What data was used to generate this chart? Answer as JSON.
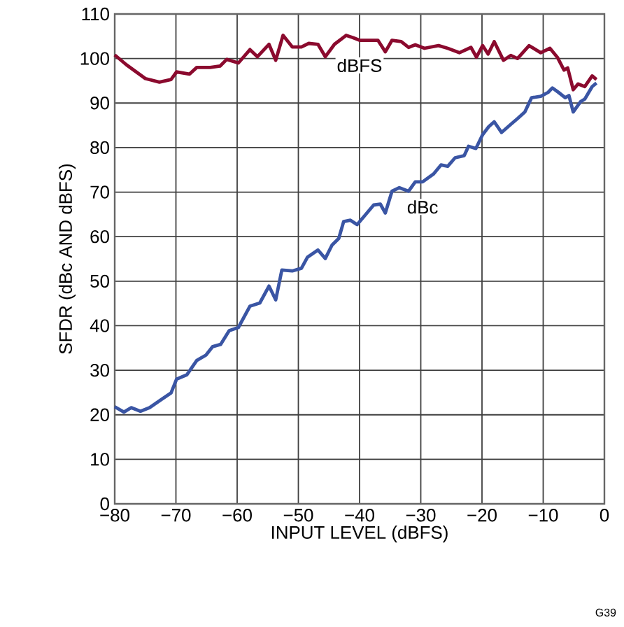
{
  "chart_data": {
    "type": "line",
    "xlabel": "INPUT LEVEL (dBFS)",
    "ylabel": "SFDR (dBc AND dBFS)",
    "xlim": [
      -80,
      0
    ],
    "ylim": [
      0,
      110
    ],
    "xticks": [
      {
        "value": -80,
        "label": "−80"
      },
      {
        "value": -70,
        "label": "−70"
      },
      {
        "value": -60,
        "label": "−60"
      },
      {
        "value": -50,
        "label": "−50"
      },
      {
        "value": -40,
        "label": "−40"
      },
      {
        "value": -30,
        "label": "−30"
      },
      {
        "value": -20,
        "label": "−20"
      },
      {
        "value": -10,
        "label": "−10"
      },
      0
    ],
    "yticks": [
      0,
      10,
      20,
      30,
      40,
      50,
      60,
      70,
      80,
      90,
      100,
      110
    ],
    "grid": true,
    "annotations": [
      "G39"
    ],
    "series": [
      {
        "name": "dBFS",
        "color": "#8b0a2e",
        "x": [
          -80,
          -78.1,
          -75,
          -72.7,
          -70.8,
          -69.9,
          -67.8,
          -66.6,
          -64.4,
          -62.8,
          -61.7,
          -59.8,
          -57.9,
          -56.7,
          -54.8,
          -53.7,
          -52.5,
          -51,
          -49.5,
          -48.3,
          -46.8,
          -45.6,
          -44.1,
          -42.2,
          -41.1,
          -40,
          -37,
          -35.8,
          -34.7,
          -33.2,
          -32,
          -30.9,
          -29.4,
          -27.1,
          -25.6,
          -23.7,
          -21.8,
          -20.9,
          -19.9,
          -19,
          -18,
          -16.5,
          -15.3,
          -14.2,
          -12.3,
          -10.4,
          -8.9,
          -7.7,
          -6.6,
          -6,
          -5.1,
          -4.3,
          -3.2,
          -2,
          -1.3
        ],
        "values": [
          100.8,
          98.6,
          95.5,
          94.7,
          95.3,
          97,
          96.5,
          98,
          98,
          98.3,
          99.8,
          99,
          102,
          100.4,
          103.2,
          99.6,
          105.2,
          102.6,
          102.6,
          103.4,
          103.2,
          100.4,
          103.2,
          105.2,
          104.7,
          104.1,
          104.1,
          101.5,
          104.1,
          103.8,
          102.5,
          103.1,
          102.3,
          102.9,
          102.3,
          101.3,
          102.5,
          100.3,
          102.9,
          101,
          103.8,
          99.6,
          100.7,
          100,
          102.9,
          101.3,
          102.3,
          100.3,
          97.4,
          97.9,
          93,
          94.3,
          93.7,
          96.1,
          95.3
        ]
      },
      {
        "name": "dBc",
        "color": "#3a55a4",
        "x": [
          -80,
          -78.5,
          -77.3,
          -75.8,
          -74.3,
          -72.4,
          -70.8,
          -69.9,
          -68.2,
          -66.6,
          -65.1,
          -64,
          -62.7,
          -61.3,
          -59.8,
          -57.9,
          -56.3,
          -54.8,
          -53.7,
          -52.7,
          -51,
          -49.5,
          -48.5,
          -46.8,
          -45.6,
          -44.5,
          -43.4,
          -42.6,
          -41.5,
          -40.4,
          -37.7,
          -36.6,
          -35.8,
          -34.7,
          -33.5,
          -32,
          -30.9,
          -29.7,
          -27.9,
          -26.7,
          -25.6,
          -24.4,
          -22.9,
          -22.2,
          -21,
          -19.9,
          -18.9,
          -18,
          -16.8,
          -15.3,
          -14.2,
          -13,
          -11.9,
          -10.4,
          -9.2,
          -8.5,
          -7.5,
          -6.4,
          -5.8,
          -5.1,
          -3.9,
          -3.2,
          -2,
          -1.3
        ],
        "values": [
          21.8,
          20.6,
          21.6,
          20.8,
          21.6,
          23.4,
          24.9,
          28,
          29,
          32.2,
          33.4,
          35.3,
          35.8,
          38.9,
          39.6,
          44.4,
          45.1,
          48.9,
          45.8,
          52.5,
          52.3,
          52.9,
          55.4,
          57,
          55.1,
          58.1,
          59.6,
          63.4,
          63.7,
          62.7,
          67.1,
          67.3,
          65.3,
          70.2,
          71,
          70.2,
          72.3,
          72.3,
          74.1,
          76.1,
          75.8,
          77.7,
          78.2,
          80.3,
          79.8,
          82.9,
          84.7,
          85.8,
          83.4,
          85.2,
          86.5,
          88,
          91.2,
          91.5,
          92.4,
          93.4,
          92.4,
          91.2,
          91.7,
          88,
          90.3,
          90.9,
          93.7,
          94.5
        ]
      }
    ]
  }
}
